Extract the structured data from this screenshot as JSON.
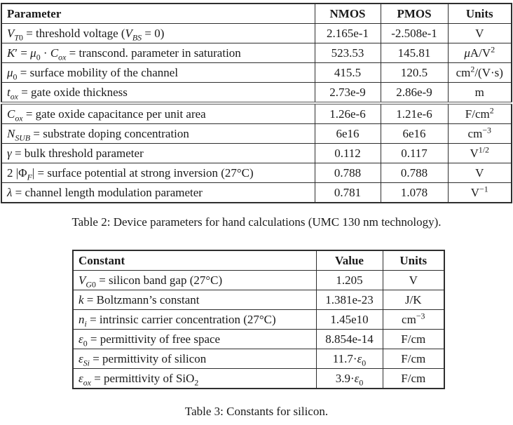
{
  "page": {
    "background": "#ffffff",
    "text_color": "#1a1a1a",
    "border_color": "#2e2e2e"
  },
  "table2": {
    "caption": "Table 2: Device parameters for hand calculations (UMC 130 nm technology).",
    "headers": [
      "Parameter",
      "NMOS",
      "PMOS",
      "Units"
    ],
    "rows": [
      {
        "param": "<i>V</i><sub><i>T</i>0</sub> = threshold voltage (<i>V</i><sub><i>BS</i></sub> = 0)",
        "nmos": "2.165e-1",
        "pmos": "-2.508e-1",
        "units": "V"
      },
      {
        "param": "<i>K</i>′ = <i>μ</i><sub>0</sub> · <i>C</i><sub><i>ox</i></sub> = transcond. parameter in saturation",
        "nmos": "523.53",
        "pmos": "145.81",
        "units": "<i>μ</i>A/V<sup>2</sup>"
      },
      {
        "param": "<i>μ</i><sub>0</sub> = surface mobility of the channel",
        "nmos": "415.5",
        "pmos": "120.5",
        "units": "cm<sup>2</sup>/(V·s)"
      },
      {
        "param": "<i>t</i><sub><i>ox</i></sub> = gate oxide thickness",
        "nmos": "2.73e-9",
        "pmos": "2.86e-9",
        "units": "m"
      },
      {
        "param": "<i>C</i><sub><i>ox</i></sub> = gate oxide capacitance per unit area",
        "nmos": "1.26e-6",
        "pmos": "1.21e-6",
        "units": "F/cm<sup>2</sup>"
      },
      {
        "param": "<i>N</i><sub><i>SUB</i></sub> = substrate doping concentration",
        "nmos": "6e16",
        "pmos": "6e16",
        "units": "cm<sup>−3</sup>"
      },
      {
        "param": "<i>γ</i> = bulk threshold parameter",
        "nmos": "0.112",
        "pmos": "0.117",
        "units": "V<sup>1/2</sup>"
      },
      {
        "param": "2 |Φ<sub><i>F</i></sub>| = surface potential at strong inversion (27°C)",
        "nmos": "0.788",
        "pmos": "0.788",
        "units": "V"
      },
      {
        "param": "<i>λ</i> = channel length modulation parameter",
        "nmos": "0.781",
        "pmos": "1.078",
        "units": "V<sup>−1</sup>"
      }
    ]
  },
  "table3": {
    "caption": "Table 3: Constants for silicon.",
    "headers": [
      "Constant",
      "Value",
      "Units"
    ],
    "rows": [
      {
        "constant": "<i>V</i><sub><i>G</i>0</sub> = silicon band gap (27°C)",
        "value": "1.205",
        "units": "V"
      },
      {
        "constant": "<i>k</i> = Boltzmann’s constant",
        "value": "1.381e-23",
        "units": "J/K"
      },
      {
        "constant": "<i>n</i><sub><i>i</i></sub> = intrinsic carrier concentration (27°C)",
        "value": "1.45e10",
        "units": "cm<sup>−3</sup>"
      },
      {
        "constant": "<i>ε</i><sub>0</sub> = permittivity of free space",
        "value": "8.854e-14",
        "units": "F/cm"
      },
      {
        "constant": "<i>ε</i><sub><i>Si</i></sub> = permittivity of silicon",
        "value": "11.7·<i>ε</i><sub>0</sub>",
        "units": "F/cm"
      },
      {
        "constant": "<i>ε</i><sub><i>ox</i></sub> = permittivity of SiO<sub>2</sub>",
        "value": "3.9·<i>ε</i><sub>0</sub>",
        "units": "F/cm"
      }
    ]
  }
}
